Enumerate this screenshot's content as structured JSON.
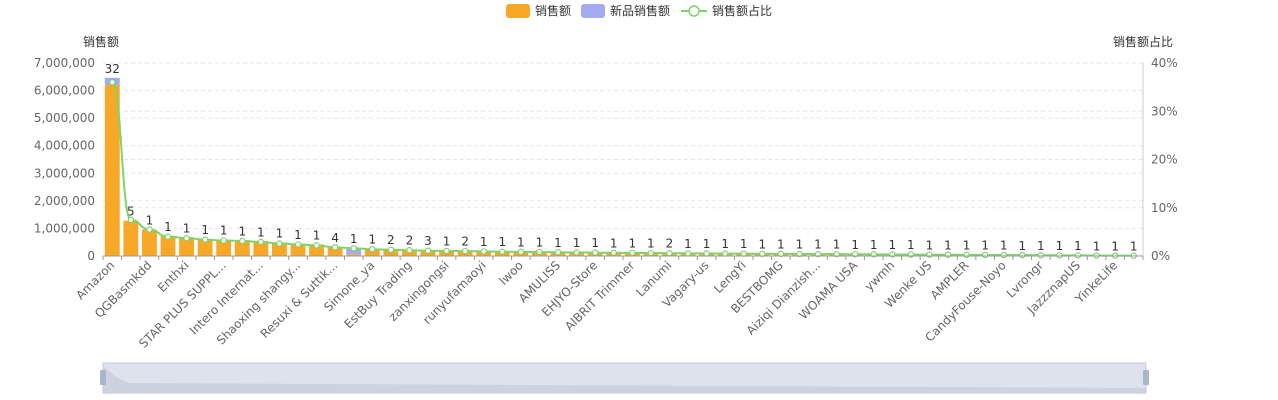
{
  "legend": {
    "sales": "销售额",
    "new_sales": "新品销售额",
    "share": "销售额占比"
  },
  "axes": {
    "y_left_name": "销售额",
    "y_right_name": "销售额占比"
  },
  "colors": {
    "sales": "#f7a826",
    "new_sales": "#a3aaef",
    "share": "#7ed36a",
    "grid": "#e6e6e6",
    "zoom_bg": "#dde2ec"
  },
  "chart_data": {
    "type": "bar",
    "x_tick_labels": [
      "Amazon",
      "QGBasmkdd",
      "Enthxi",
      "STAR PLUS SUPPL...",
      "Intero Internat...",
      "Shaoxing shangy...",
      "Resuxi & Suttik...",
      "Simone_ya",
      "EstBuy Trading",
      "zanxingongsi",
      "runyufamaoyi",
      "lwoo",
      "AMULISS",
      "EHJYO-Store",
      "AIBRIT Trimmer",
      "Lanumi",
      "Vagary-us",
      "LengYi",
      "BESTBOMG",
      "Aiziqi Dianzish...",
      "WOAMA USA",
      "ywmh",
      "Wenke US",
      "AMPLER",
      "CandyFouse-Noyo",
      "Lvrongr",
      "JazzznapUS",
      "YinkeLife"
    ],
    "bar_labels": [
      "32",
      "5",
      "1",
      "1",
      "1",
      "1",
      "1",
      "1",
      "1",
      "1",
      "1",
      "1",
      "4",
      "1",
      "1",
      "2",
      "2",
      "3",
      "1",
      "2",
      "1",
      "1",
      "1",
      "1",
      "1",
      "1",
      "1",
      "1",
      "1",
      "1",
      "2",
      "1",
      "1",
      "1",
      "1",
      "1",
      "1",
      "1",
      "1",
      "1",
      "1",
      "1",
      "1",
      "1",
      "1",
      "1",
      "1",
      "1",
      "1",
      "1",
      "1",
      "1",
      "1",
      "1",
      "1",
      "1"
    ],
    "sales": [
      6200000,
      1280000,
      960000,
      720000,
      680000,
      620000,
      590000,
      570000,
      520000,
      490000,
      440000,
      420000,
      320000,
      60000,
      270000,
      250000,
      230000,
      215000,
      205000,
      195000,
      185000,
      175000,
      168000,
      160000,
      152000,
      146000,
      140000,
      135000,
      130000,
      125000,
      120000,
      115000,
      111000,
      107000,
      103000,
      99000,
      95000,
      91000,
      87000,
      83000,
      79000,
      75000,
      71000,
      67000,
      63000,
      59000,
      55000,
      51000,
      47000,
      43000,
      39000,
      35000,
      31000,
      27000,
      23000,
      19000
    ],
    "new_sales": [
      260000,
      0,
      0,
      0,
      0,
      0,
      0,
      0,
      0,
      0,
      0,
      0,
      0,
      230000,
      0,
      0,
      0,
      0,
      0,
      0,
      0,
      0,
      0,
      0,
      0,
      0,
      0,
      0,
      0,
      0,
      0,
      0,
      0,
      0,
      0,
      0,
      0,
      0,
      0,
      0,
      0,
      0,
      0,
      0,
      0,
      0,
      0,
      0,
      0,
      0,
      0,
      0,
      0,
      0,
      0,
      0
    ],
    "share_percent": [
      36,
      7.5,
      5.5,
      4,
      3.7,
      3.4,
      3.2,
      3.1,
      2.9,
      2.6,
      2.4,
      2.2,
      1.8,
      1.6,
      1.4,
      1.3,
      1.2,
      1.1,
      1.05,
      1.0,
      0.95,
      0.9,
      0.86,
      0.82,
      0.78,
      0.74,
      0.7,
      0.67,
      0.64,
      0.61,
      0.58,
      0.55,
      0.52,
      0.5,
      0.48,
      0.46,
      0.44,
      0.42,
      0.4,
      0.38,
      0.36,
      0.34,
      0.32,
      0.3,
      0.28,
      0.26,
      0.24,
      0.22,
      0.2,
      0.18,
      0.16,
      0.14,
      0.12,
      0.1,
      0.08,
      0.06
    ],
    "y_left_ticks": [
      "0",
      "1,000,000",
      "2,000,000",
      "3,000,000",
      "4,000,000",
      "5,000,000",
      "6,000,000",
      "7,000,000"
    ],
    "y_right_ticks": [
      "0%",
      "10%",
      "20%",
      "30%",
      "40%"
    ],
    "y_left_range": [
      0,
      7000000
    ],
    "y_right_range": [
      0,
      40
    ],
    "legend_position": "top-center",
    "grid": true
  }
}
